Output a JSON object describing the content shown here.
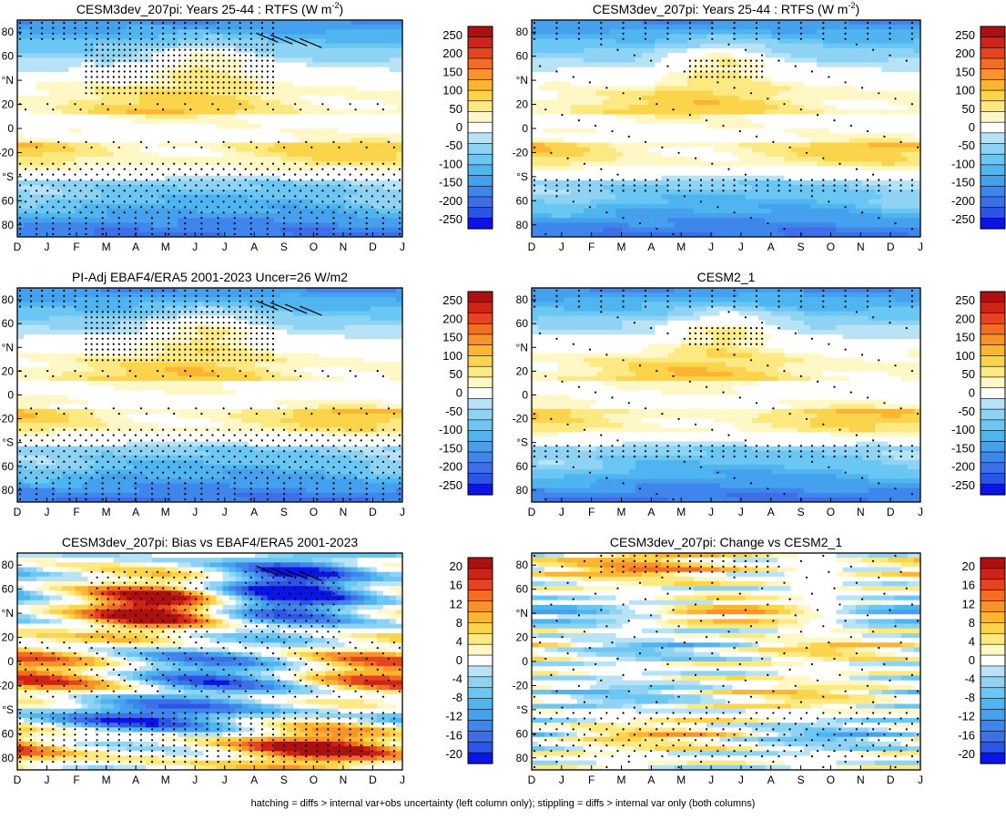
{
  "footer": "hatching = diffs > internal var+obs uncertainty (left column only); stippling = diffs > internal var only (both columns)",
  "months": [
    "D",
    "J",
    "F",
    "M",
    "A",
    "M",
    "J",
    "J",
    "A",
    "S",
    "O",
    "N",
    "D",
    "J"
  ],
  "lat_ticks": [
    "80",
    "60",
    "°N",
    "20",
    "0",
    "-20",
    "°S",
    "60",
    "80"
  ],
  "colors": {
    "neg": [
      "#0a14e6",
      "#2a55e6",
      "#3f6fe6",
      "#3f86ec",
      "#45a0ee",
      "#4fb5f0",
      "#6ac6f2",
      "#8fd3f4",
      "#b8e2f6"
    ],
    "pos": [
      "#fff7c6",
      "#fde982",
      "#fcd44c",
      "#fbb530",
      "#f7932a",
      "#f26d22",
      "#e44420",
      "#cf2317",
      "#ac1010"
    ],
    "zero": "#ffffff"
  },
  "chart_data": [
    {
      "type": "heatmap",
      "title": "CESM3dev_207pi: Years 25-44 : RTFS (W m",
      "title_sup": "-2",
      "title_suffix": ")",
      "field": "rtfs",
      "hatch": true,
      "stipple": "model",
      "colorbar": {
        "labels": [
          "250",
          "200",
          "150",
          "100",
          "50",
          "0",
          "-50",
          "-100",
          "-150",
          "-200",
          "-250"
        ],
        "ticks": [
          250,
          200,
          150,
          100,
          50,
          0,
          -50,
          -100,
          -150,
          -200,
          -250
        ]
      }
    },
    {
      "type": "heatmap",
      "title": "CESM3dev_207pi: Years 25-44 : RTFS (W m",
      "title_sup": "-2",
      "title_suffix": ")",
      "field": "rtfs",
      "hatch": false,
      "stipple": "sparse",
      "colorbar": {
        "labels": [
          "250",
          "200",
          "150",
          "100",
          "50",
          "0",
          "-50",
          "-100",
          "-150",
          "-200",
          "-250"
        ],
        "ticks": [
          250,
          200,
          150,
          100,
          50,
          0,
          -50,
          -100,
          -150,
          -200,
          -250
        ]
      }
    },
    {
      "type": "heatmap",
      "title": "PI-Adj EBAF4/ERA5 2001-2023 Uncer=26 W/m2",
      "field": "rtfs",
      "hatch": true,
      "stipple": "model",
      "colorbar": {
        "labels": [
          "250",
          "200",
          "150",
          "100",
          "50",
          "0",
          "-50",
          "-100",
          "-150",
          "-200",
          "-250"
        ],
        "ticks": [
          250,
          200,
          150,
          100,
          50,
          0,
          -50,
          -100,
          -150,
          -200,
          -250
        ]
      }
    },
    {
      "type": "heatmap",
      "title": "CESM2_1",
      "field": "rtfs",
      "hatch": false,
      "stipple": "sparse",
      "colorbar": {
        "labels": [
          "250",
          "200",
          "150",
          "100",
          "50",
          "0",
          "-50",
          "-100",
          "-150",
          "-200",
          "-250"
        ],
        "ticks": [
          250,
          200,
          150,
          100,
          50,
          0,
          -50,
          -100,
          -150,
          -200,
          -250
        ]
      }
    },
    {
      "type": "heatmap",
      "title": "CESM3dev_207pi: Bias vs EBAF4/ERA5 2001-2023",
      "field": "bias",
      "hatch": true,
      "stipple": "bias",
      "colorbar": {
        "labels": [
          "20",
          "16",
          "12",
          "8",
          "4",
          "0",
          "-4",
          "-8",
          "-12",
          "-16",
          "-20"
        ],
        "ticks": [
          20,
          16,
          12,
          8,
          4,
          0,
          -4,
          -8,
          -12,
          -16,
          -20
        ]
      }
    },
    {
      "type": "heatmap",
      "title": "CESM3dev_207pi: Change vs CESM2_1",
      "field": "change",
      "hatch": false,
      "stipple": "change",
      "colorbar": {
        "labels": [
          "20",
          "16",
          "12",
          "8",
          "4",
          "0",
          "-4",
          "-8",
          "-12",
          "-16",
          "-20"
        ],
        "ticks": [
          20,
          16,
          12,
          8,
          4,
          0,
          -4,
          -8,
          -12,
          -16,
          -20
        ]
      }
    }
  ]
}
